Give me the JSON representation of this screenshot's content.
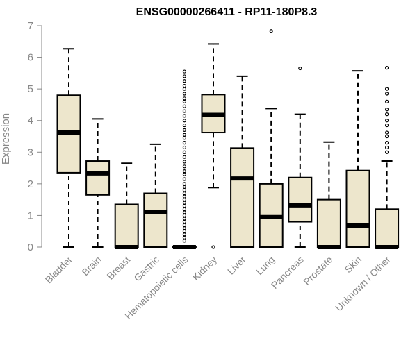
{
  "chart_data": {
    "type": "boxplot",
    "title": "ENSG00000266411 - RP11-180P8.3",
    "xlabel": "",
    "ylabel": "Expression",
    "ylim": [
      0,
      7
    ],
    "yticks": [
      0,
      1,
      2,
      3,
      4,
      5,
      6,
      7
    ],
    "box_fill": "#ede6cc",
    "box_stroke": "#000000",
    "categories": [
      "Bladder",
      "Brain",
      "Breast",
      "Gastric",
      "Hematopoietic cells",
      "Kidney",
      "Liver",
      "Lung",
      "Pancreas",
      "Prostate",
      "Skin",
      "Unknown / Other"
    ],
    "boxes": [
      {
        "min": 0,
        "q1": 2.35,
        "median": 3.62,
        "q3": 4.8,
        "max": 6.27,
        "outliers": []
      },
      {
        "min": 0,
        "q1": 1.65,
        "median": 2.33,
        "q3": 2.72,
        "max": 4.05,
        "outliers": []
      },
      {
        "min": 0,
        "q1": 0,
        "median": 0,
        "q3": 1.35,
        "max": 2.65,
        "outliers": []
      },
      {
        "min": 0,
        "q1": 0,
        "median": 1.12,
        "q3": 1.7,
        "max": 3.25,
        "outliers": []
      },
      {
        "min": 0,
        "q1": 0,
        "median": 0,
        "q3": 0,
        "max": 0,
        "outliers": [
          5.55,
          5.4,
          5.25,
          5.1,
          5.0,
          4.85,
          4.7,
          4.6,
          4.45,
          4.3,
          4.15,
          4.0,
          3.85,
          3.7,
          3.55,
          3.45,
          3.3,
          3.15,
          3.0,
          2.85,
          2.7,
          2.55,
          2.4,
          2.3,
          2.15,
          2.0,
          1.9,
          1.8,
          1.7,
          1.6,
          1.5,
          1.4,
          1.3,
          1.2,
          1.1,
          1.0,
          0.9,
          0.8,
          0.7,
          0.6,
          0.5,
          0.4,
          0.3,
          0.2
        ]
      },
      {
        "min": 1.88,
        "q1": 3.62,
        "median": 4.18,
        "q3": 4.82,
        "max": 6.42,
        "outliers": [
          0
        ]
      },
      {
        "min": 0,
        "q1": 0,
        "median": 2.17,
        "q3": 3.13,
        "max": 5.4,
        "outliers": []
      },
      {
        "min": 0,
        "q1": 0,
        "median": 0.95,
        "q3": 2.0,
        "max": 4.38,
        "outliers": [
          6.83
        ]
      },
      {
        "min": 0,
        "q1": 0.8,
        "median": 1.32,
        "q3": 2.2,
        "max": 4.2,
        "outliers": [
          5.65
        ]
      },
      {
        "min": 0,
        "q1": 0,
        "median": 0,
        "q3": 1.5,
        "max": 3.32,
        "outliers": []
      },
      {
        "min": 0,
        "q1": 0,
        "median": 0.68,
        "q3": 2.42,
        "max": 5.57,
        "outliers": []
      },
      {
        "min": 0,
        "q1": 0,
        "median": 0,
        "q3": 1.2,
        "max": 2.72,
        "outliers": [
          5.67,
          5.0,
          4.85,
          4.6,
          4.35,
          4.2,
          4.0,
          3.85,
          3.62,
          3.5,
          3.3,
          3.15,
          3.0
        ]
      }
    ]
  }
}
